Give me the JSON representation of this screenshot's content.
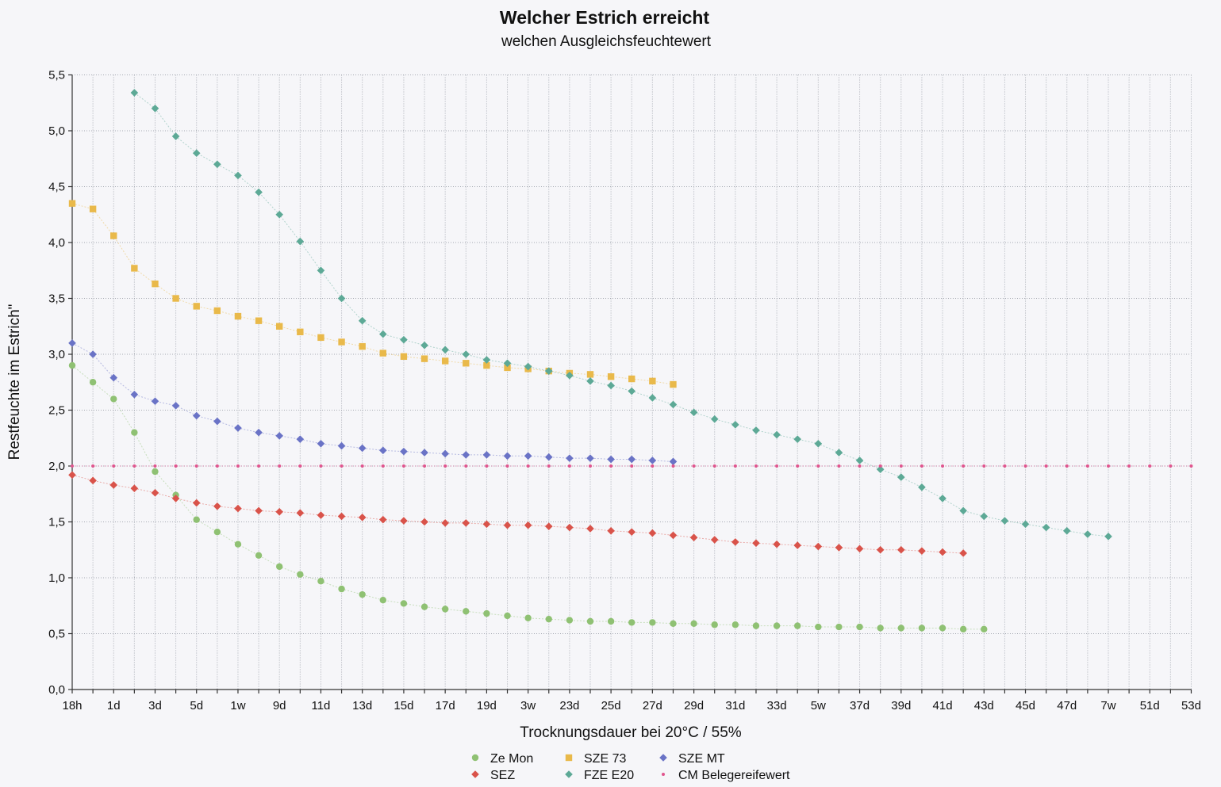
{
  "chart_data": {
    "type": "scatter",
    "title": "Welcher Estrich erreicht",
    "subtitle": "welchen  Ausgleichsfeuchtewert",
    "xlabel": "Trocknungsdauer bei 20°C / 55%",
    "ylabel": "Restfeuchte im Estrich\"",
    "ylim": [
      0,
      5.5
    ],
    "y_ticks": [
      "0,0",
      "0,5",
      "1,0",
      "1,5",
      "2,0",
      "2,5",
      "3,0",
      "3,5",
      "4,0",
      "4,5",
      "5,0",
      "5,5"
    ],
    "x_count": 55,
    "x_ticks": [
      "18h",
      "1d",
      "3d",
      "5d",
      "1w",
      "9d",
      "11d",
      "13d",
      "15d",
      "17d",
      "19d",
      "3w",
      "23d",
      "25d",
      "27d",
      "29d",
      "31d",
      "33d",
      "5w",
      "37d",
      "39d",
      "41d",
      "43d",
      "45d",
      "47d",
      "7w",
      "51d",
      "53d"
    ],
    "grid": true,
    "legend_position": "bottom",
    "series": [
      {
        "name": "Ze Mon",
        "color": "#8fc173",
        "marker": "circle",
        "values": [
          2.9,
          2.75,
          2.6,
          2.3,
          1.95,
          1.74,
          1.52,
          1.41,
          1.3,
          1.2,
          1.1,
          1.03,
          0.97,
          0.9,
          0.85,
          0.8,
          0.77,
          0.74,
          0.72,
          0.7,
          0.68,
          0.66,
          0.64,
          0.63,
          0.62,
          0.61,
          0.61,
          0.6,
          0.6,
          0.59,
          0.59,
          0.58,
          0.58,
          0.57,
          0.57,
          0.57,
          0.56,
          0.56,
          0.56,
          0.55,
          0.55,
          0.55,
          0.55,
          0.54,
          0.54
        ]
      },
      {
        "name": "SEZ",
        "color": "#d9534a",
        "marker": "diamond",
        "values": [
          1.92,
          1.87,
          1.83,
          1.8,
          1.76,
          1.71,
          1.67,
          1.64,
          1.62,
          1.6,
          1.59,
          1.58,
          1.56,
          1.55,
          1.54,
          1.52,
          1.51,
          1.5,
          1.49,
          1.49,
          1.48,
          1.47,
          1.47,
          1.46,
          1.45,
          1.44,
          1.42,
          1.41,
          1.4,
          1.38,
          1.36,
          1.34,
          1.32,
          1.31,
          1.3,
          1.29,
          1.28,
          1.27,
          1.26,
          1.25,
          1.25,
          1.24,
          1.23,
          1.22
        ]
      },
      {
        "name": "SZE 73",
        "color": "#e9b94a",
        "marker": "square",
        "values": [
          4.35,
          4.3,
          4.06,
          3.77,
          3.63,
          3.5,
          3.43,
          3.39,
          3.34,
          3.3,
          3.25,
          3.2,
          3.15,
          3.11,
          3.07,
          3.01,
          2.98,
          2.96,
          2.94,
          2.92,
          2.9,
          2.88,
          2.87,
          2.85,
          2.83,
          2.82,
          2.8,
          2.78,
          2.76,
          2.73
        ]
      },
      {
        "name": "FZE E20",
        "color": "#5da996",
        "marker": "diamond",
        "x_start": 3,
        "values": [
          5.34,
          5.2,
          4.95,
          4.8,
          4.7,
          4.6,
          4.45,
          4.25,
          4.01,
          3.75,
          3.5,
          3.3,
          3.18,
          3.13,
          3.08,
          3.04,
          3.0,
          2.95,
          2.92,
          2.89,
          2.85,
          2.81,
          2.76,
          2.72,
          2.67,
          2.61,
          2.55,
          2.48,
          2.42,
          2.37,
          2.32,
          2.28,
          2.24,
          2.2,
          2.12,
          2.05,
          1.97,
          1.9,
          1.81,
          1.71,
          1.6,
          1.55,
          1.51,
          1.48,
          1.45,
          1.42,
          1.39,
          1.37
        ]
      },
      {
        "name": "SZE MT",
        "color": "#6a73c6",
        "marker": "diamond",
        "values": [
          3.1,
          3.0,
          2.79,
          2.64,
          2.58,
          2.54,
          2.45,
          2.4,
          2.34,
          2.3,
          2.27,
          2.24,
          2.2,
          2.18,
          2.16,
          2.14,
          2.13,
          2.12,
          2.11,
          2.1,
          2.1,
          2.09,
          2.09,
          2.08,
          2.07,
          2.07,
          2.06,
          2.06,
          2.05,
          2.04
        ]
      },
      {
        "name": "CM Belegereifewert",
        "color": "#e0558e",
        "marker": "dot",
        "values": [
          2,
          2,
          2,
          2,
          2,
          2,
          2,
          2,
          2,
          2,
          2,
          2,
          2,
          2,
          2,
          2,
          2,
          2,
          2,
          2,
          2,
          2,
          2,
          2,
          2,
          2,
          2,
          2,
          2,
          2,
          2,
          2,
          2,
          2,
          2,
          2,
          2,
          2,
          2,
          2,
          2,
          2,
          2,
          2,
          2,
          2,
          2,
          2,
          2,
          2,
          2,
          2,
          2,
          2,
          2
        ]
      }
    ]
  },
  "legend": [
    {
      "label": "Ze Mon",
      "color": "#8fc173",
      "marker": "circle"
    },
    {
      "label": "SEZ",
      "color": "#d9534a",
      "marker": "diamond"
    },
    {
      "label": "SZE 73",
      "color": "#e9b94a",
      "marker": "square"
    },
    {
      "label": "FZE E20",
      "color": "#5da996",
      "marker": "diamond"
    },
    {
      "label": "SZE MT",
      "color": "#6a73c6",
      "marker": "diamond"
    },
    {
      "label": "CM Belegereifewert",
      "color": "#e0558e",
      "marker": "dot"
    }
  ]
}
